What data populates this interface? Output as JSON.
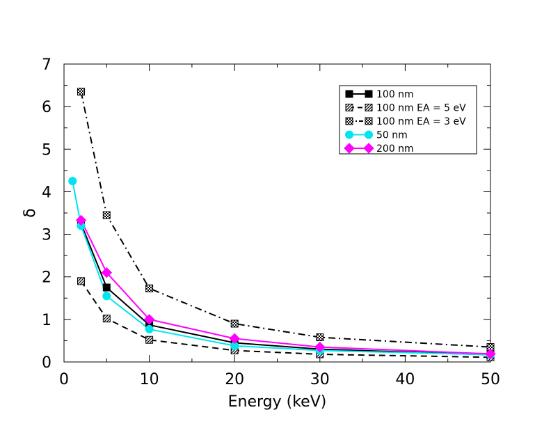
{
  "chart_data": {
    "type": "line",
    "title": "",
    "xlabel": "Energy (keV)",
    "ylabel": "δ",
    "xlim": [
      0,
      50
    ],
    "ylim": [
      0,
      7
    ],
    "xticks": [
      "0",
      "10",
      "20",
      "30",
      "40",
      "50"
    ],
    "yticks": [
      "0",
      "1",
      "2",
      "3",
      "4",
      "5",
      "6",
      "7"
    ],
    "grid": false,
    "legend_position": "top-right",
    "series": [
      {
        "name": "100 nm",
        "x": [
          2,
          5,
          10,
          20,
          30,
          50
        ],
        "y": [
          3.25,
          1.75,
          0.87,
          0.45,
          0.3,
          0.17
        ],
        "color": "#000000",
        "line": "solid",
        "marker": "square-filled"
      },
      {
        "name": "100 nm EA = 5 eV",
        "x": [
          2,
          5,
          10,
          20,
          30,
          50
        ],
        "y": [
          1.9,
          1.02,
          0.52,
          0.27,
          0.18,
          0.11
        ],
        "color": "#000000",
        "line": "dashed",
        "marker": "square-hatched"
      },
      {
        "name": "100 nm EA = 3 eV",
        "x": [
          2,
          5,
          10,
          20,
          30,
          50
        ],
        "y": [
          6.35,
          3.45,
          1.73,
          0.9,
          0.58,
          0.35
        ],
        "color": "#000000",
        "line": "dashdot",
        "marker": "square-checkered"
      },
      {
        "name": "50 nm",
        "x": [
          1,
          2,
          5,
          10,
          20,
          30,
          50
        ],
        "y": [
          4.25,
          3.2,
          1.55,
          0.77,
          0.38,
          0.27,
          0.17
        ],
        "color": "#00e5ee",
        "line": "solid",
        "marker": "circle"
      },
      {
        "name": "200 nm",
        "x": [
          2,
          5,
          10,
          20,
          30,
          50
        ],
        "y": [
          3.33,
          2.1,
          1.0,
          0.55,
          0.35,
          0.19
        ],
        "color": "#ff00ff",
        "line": "solid",
        "marker": "diamond"
      }
    ]
  }
}
